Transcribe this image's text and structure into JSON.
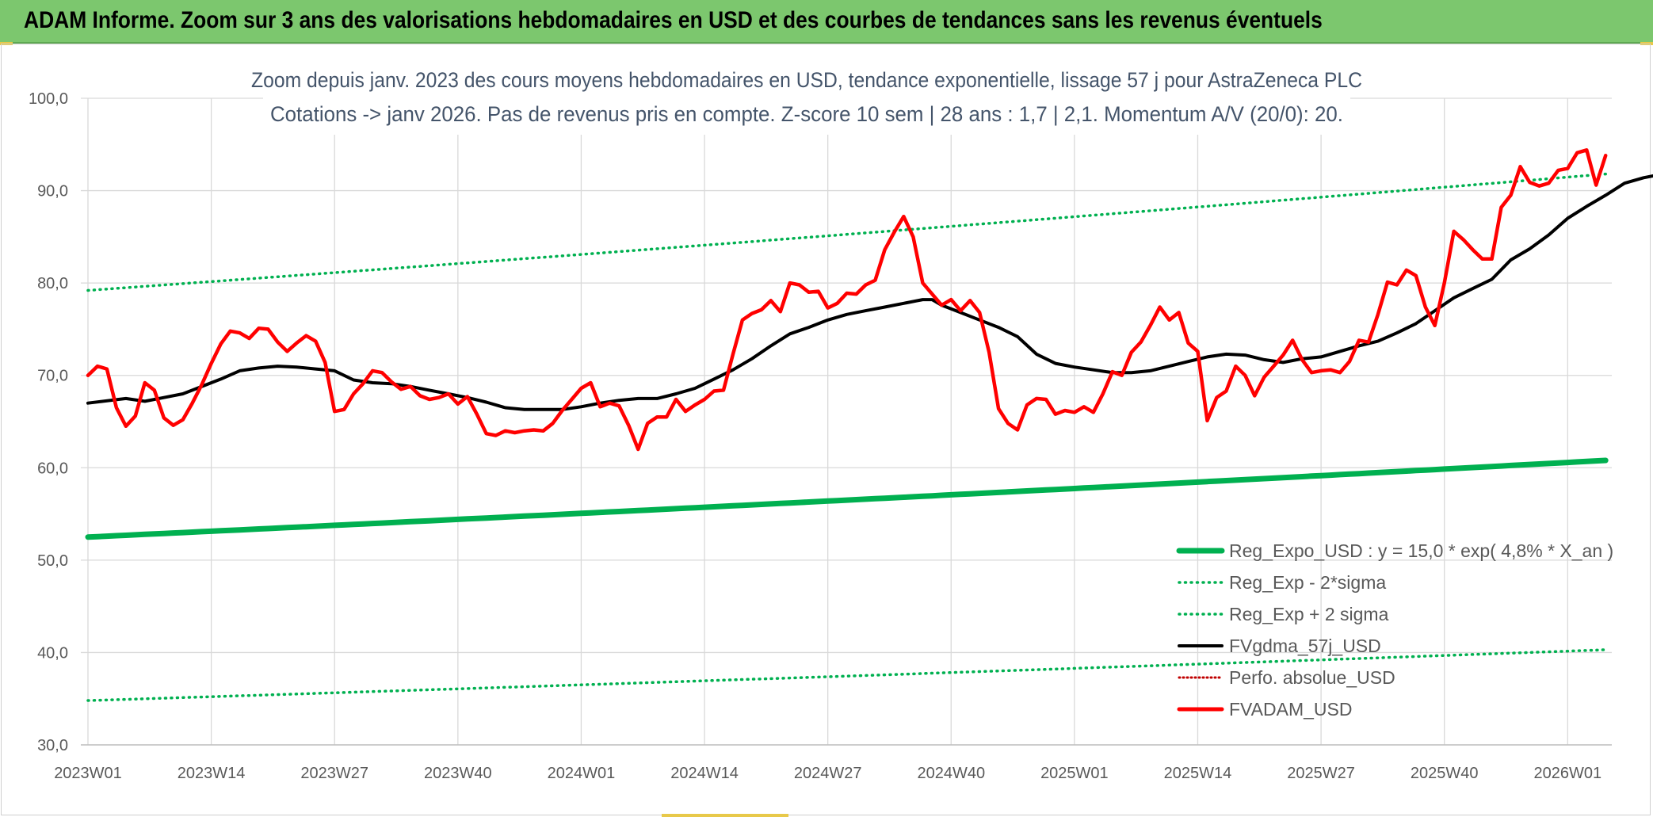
{
  "banner": {
    "title": "ADAM Informe. Zoom sur 3 ans des valorisations hebdomadaires en USD et des courbes de tendances sans les revenus éventuels"
  },
  "chart_data": {
    "type": "line",
    "title_line1": "Zoom depuis janv. 2023 des cours moyens hebdomadaires en USD, tendance exponentielle, lissage 57 j pour AstraZeneca PLC",
    "title_line2": "Cotations -> janv 2026. Pas de revenus pris en compte. Z-score 10 sem | 28 ans : 1,7 | 2,1. Momentum A/V (20/0): 20.",
    "ylim": [
      30,
      100
    ],
    "yticks": [
      "30,0",
      "40,0",
      "50,0",
      "60,0",
      "70,0",
      "80,0",
      "90,0",
      "100,0"
    ],
    "ytick_values": [
      30,
      40,
      50,
      60,
      70,
      80,
      90,
      100
    ],
    "x_count": 158,
    "xticks": [
      "2023W01",
      "2023W14",
      "2023W27",
      "2023W40",
      "2024W01",
      "2024W14",
      "2024W27",
      "2024W40",
      "2025W01",
      "2025W14",
      "2025W27",
      "2025W40",
      "2026W01"
    ],
    "xtick_index": [
      0,
      13,
      26,
      39,
      52,
      65,
      78,
      91,
      104,
      117,
      130,
      143,
      156
    ],
    "grid": true,
    "legend_position": "bottom-right",
    "colors": {
      "reg_expo": "#00b050",
      "sigma": "#00b050",
      "fvgdma": "#000000",
      "perfo": "#c00000",
      "fvadam": "#ff0000",
      "grid": "#d9d9d9",
      "axis_text": "#595959"
    },
    "series": [
      {
        "key": "reg_expo",
        "name": "Reg_Expo_USD : y = 15,0 * exp( 4,8% *  X_an )",
        "start": 52.5,
        "end": 60.8
      },
      {
        "key": "minus2",
        "name": "Reg_Exp - 2*sigma",
        "start": 34.8,
        "end": 40.3
      },
      {
        "key": "plus2",
        "name": "Reg_Exp + 2 sigma",
        "start": 79.2,
        "end": 91.8
      },
      {
        "key": "fvgdma",
        "name": "FVgdma_57j_USD",
        "points": [
          [
            0,
            67.0
          ],
          [
            4,
            67.5
          ],
          [
            6,
            67.2
          ],
          [
            8,
            67.6
          ],
          [
            10,
            68.0
          ],
          [
            12,
            68.8
          ],
          [
            14,
            69.6
          ],
          [
            16,
            70.5
          ],
          [
            18,
            70.8
          ],
          [
            20,
            71.0
          ],
          [
            22,
            70.9
          ],
          [
            24,
            70.7
          ],
          [
            26,
            70.5
          ],
          [
            28,
            69.5
          ],
          [
            30,
            69.2
          ],
          [
            32,
            69.1
          ],
          [
            34,
            68.8
          ],
          [
            36,
            68.4
          ],
          [
            38,
            68.0
          ],
          [
            40,
            67.6
          ],
          [
            42,
            67.1
          ],
          [
            44,
            66.5
          ],
          [
            46,
            66.3
          ],
          [
            48,
            66.3
          ],
          [
            50,
            66.3
          ],
          [
            52,
            66.6
          ],
          [
            54,
            67.0
          ],
          [
            56,
            67.3
          ],
          [
            58,
            67.5
          ],
          [
            60,
            67.5
          ],
          [
            62,
            68.0
          ],
          [
            64,
            68.6
          ],
          [
            66,
            69.6
          ],
          [
            68,
            70.6
          ],
          [
            70,
            71.8
          ],
          [
            72,
            73.2
          ],
          [
            74,
            74.5
          ],
          [
            76,
            75.2
          ],
          [
            78,
            76.0
          ],
          [
            80,
            76.6
          ],
          [
            82,
            77.0
          ],
          [
            84,
            77.4
          ],
          [
            86,
            77.8
          ],
          [
            88,
            78.2
          ],
          [
            89,
            78.2
          ],
          [
            90,
            77.6
          ],
          [
            92,
            76.8
          ],
          [
            94,
            76.0
          ],
          [
            96,
            75.2
          ],
          [
            98,
            74.2
          ],
          [
            100,
            72.3
          ],
          [
            102,
            71.3
          ],
          [
            104,
            70.9
          ],
          [
            106,
            70.6
          ],
          [
            108,
            70.3
          ],
          [
            110,
            70.3
          ],
          [
            112,
            70.5
          ],
          [
            114,
            71.0
          ],
          [
            116,
            71.5
          ],
          [
            118,
            72.0
          ],
          [
            120,
            72.3
          ],
          [
            122,
            72.2
          ],
          [
            124,
            71.7
          ],
          [
            126,
            71.4
          ],
          [
            128,
            71.8
          ],
          [
            130,
            72.0
          ],
          [
            132,
            72.6
          ],
          [
            134,
            73.2
          ],
          [
            136,
            73.7
          ],
          [
            138,
            74.6
          ],
          [
            140,
            75.6
          ],
          [
            142,
            77.0
          ],
          [
            144,
            78.4
          ],
          [
            146,
            79.4
          ],
          [
            148,
            80.4
          ],
          [
            150,
            82.5
          ],
          [
            152,
            83.7
          ],
          [
            154,
            85.2
          ],
          [
            156,
            87.0
          ],
          [
            158,
            88.3
          ],
          [
            160,
            89.5
          ],
          [
            162,
            90.8
          ],
          [
            164,
            91.4
          ],
          [
            165,
            91.6
          ]
        ]
      },
      {
        "key": "perfo",
        "name": "Perfo. absolue_USD"
      },
      {
        "key": "fvadam",
        "name": "FVADAM_USD",
        "points": [
          [
            0,
            70.0
          ],
          [
            1,
            71.0
          ],
          [
            2,
            70.7
          ],
          [
            3,
            66.5
          ],
          [
            4,
            64.5
          ],
          [
            5,
            65.6
          ],
          [
            6,
            69.2
          ],
          [
            7,
            68.4
          ],
          [
            8,
            65.4
          ],
          [
            9,
            64.6
          ],
          [
            10,
            65.2
          ],
          [
            11,
            67.0
          ],
          [
            12,
            69.0
          ],
          [
            13,
            71.3
          ],
          [
            14,
            73.4
          ],
          [
            15,
            74.8
          ],
          [
            16,
            74.6
          ],
          [
            17,
            74.0
          ],
          [
            18,
            75.1
          ],
          [
            19,
            75.0
          ],
          [
            20,
            73.6
          ],
          [
            21,
            72.6
          ],
          [
            22,
            73.5
          ],
          [
            23,
            74.3
          ],
          [
            24,
            73.7
          ],
          [
            25,
            71.4
          ],
          [
            26,
            66.1
          ],
          [
            27,
            66.3
          ],
          [
            28,
            68.0
          ],
          [
            29,
            69.1
          ],
          [
            30,
            70.5
          ],
          [
            31,
            70.3
          ],
          [
            32,
            69.3
          ],
          [
            33,
            68.5
          ],
          [
            34,
            68.8
          ],
          [
            35,
            67.8
          ],
          [
            36,
            67.4
          ],
          [
            37,
            67.6
          ],
          [
            38,
            68.0
          ],
          [
            39,
            66.9
          ],
          [
            40,
            67.7
          ],
          [
            41,
            65.8
          ],
          [
            42,
            63.7
          ],
          [
            43,
            63.5
          ],
          [
            44,
            64.0
          ],
          [
            45,
            63.8
          ],
          [
            46,
            64.0
          ],
          [
            47,
            64.1
          ],
          [
            48,
            64.0
          ],
          [
            49,
            64.8
          ],
          [
            50,
            66.2
          ],
          [
            51,
            67.4
          ],
          [
            52,
            68.6
          ],
          [
            53,
            69.2
          ],
          [
            54,
            66.6
          ],
          [
            55,
            67.0
          ],
          [
            56,
            66.7
          ],
          [
            57,
            64.6
          ],
          [
            58,
            62.0
          ],
          [
            59,
            64.8
          ],
          [
            60,
            65.5
          ],
          [
            61,
            65.5
          ],
          [
            62,
            67.4
          ],
          [
            63,
            66.1
          ],
          [
            64,
            66.8
          ],
          [
            65,
            67.4
          ],
          [
            66,
            68.3
          ],
          [
            67,
            68.4
          ],
          [
            68,
            72.3
          ],
          [
            69,
            76.0
          ],
          [
            70,
            76.7
          ],
          [
            71,
            77.1
          ],
          [
            72,
            78.1
          ],
          [
            73,
            76.9
          ],
          [
            74,
            80.0
          ],
          [
            75,
            79.8
          ],
          [
            76,
            79.0
          ],
          [
            77,
            79.1
          ],
          [
            78,
            77.3
          ],
          [
            79,
            77.8
          ],
          [
            80,
            78.9
          ],
          [
            81,
            78.8
          ],
          [
            82,
            79.8
          ],
          [
            83,
            80.3
          ],
          [
            84,
            83.6
          ],
          [
            85,
            85.5
          ],
          [
            86,
            87.2
          ],
          [
            87,
            85.0
          ],
          [
            88,
            80.0
          ],
          [
            89,
            78.8
          ],
          [
            90,
            77.6
          ],
          [
            91,
            78.2
          ],
          [
            92,
            77.0
          ],
          [
            93,
            78.1
          ],
          [
            94,
            76.8
          ],
          [
            95,
            72.5
          ],
          [
            96,
            66.4
          ],
          [
            97,
            64.8
          ],
          [
            98,
            64.1
          ],
          [
            99,
            66.8
          ],
          [
            100,
            67.5
          ],
          [
            101,
            67.4
          ],
          [
            102,
            65.8
          ],
          [
            103,
            66.2
          ],
          [
            104,
            66.0
          ],
          [
            105,
            66.6
          ],
          [
            106,
            66.0
          ],
          [
            107,
            68.0
          ],
          [
            108,
            70.4
          ],
          [
            109,
            70.0
          ],
          [
            110,
            72.5
          ],
          [
            111,
            73.6
          ],
          [
            112,
            75.4
          ],
          [
            113,
            77.4
          ],
          [
            114,
            76.0
          ],
          [
            115,
            76.8
          ],
          [
            116,
            73.5
          ],
          [
            117,
            72.6
          ],
          [
            118,
            65.1
          ],
          [
            119,
            67.6
          ],
          [
            120,
            68.3
          ],
          [
            121,
            71.0
          ],
          [
            122,
            70.0
          ],
          [
            123,
            67.8
          ],
          [
            124,
            69.8
          ],
          [
            125,
            71.0
          ],
          [
            126,
            72.2
          ],
          [
            127,
            73.8
          ],
          [
            128,
            71.7
          ],
          [
            129,
            70.3
          ],
          [
            130,
            70.5
          ],
          [
            131,
            70.6
          ],
          [
            132,
            70.3
          ],
          [
            133,
            71.5
          ],
          [
            134,
            73.8
          ],
          [
            135,
            73.6
          ],
          [
            136,
            76.6
          ],
          [
            137,
            80.1
          ],
          [
            138,
            79.8
          ],
          [
            139,
            81.4
          ],
          [
            140,
            80.8
          ],
          [
            141,
            77.4
          ],
          [
            142,
            75.4
          ],
          [
            143,
            80.0
          ],
          [
            144,
            85.6
          ],
          [
            145,
            84.7
          ],
          [
            146,
            83.6
          ],
          [
            147,
            82.6
          ],
          [
            148,
            82.6
          ],
          [
            149,
            88.2
          ],
          [
            150,
            89.5
          ],
          [
            151,
            92.6
          ],
          [
            152,
            90.9
          ],
          [
            153,
            90.5
          ],
          [
            154,
            90.8
          ],
          [
            155,
            92.2
          ],
          [
            156,
            92.4
          ],
          [
            157,
            94.1
          ],
          [
            158,
            94.4
          ],
          [
            159,
            90.6
          ],
          [
            160,
            93.8
          ]
        ]
      }
    ]
  }
}
